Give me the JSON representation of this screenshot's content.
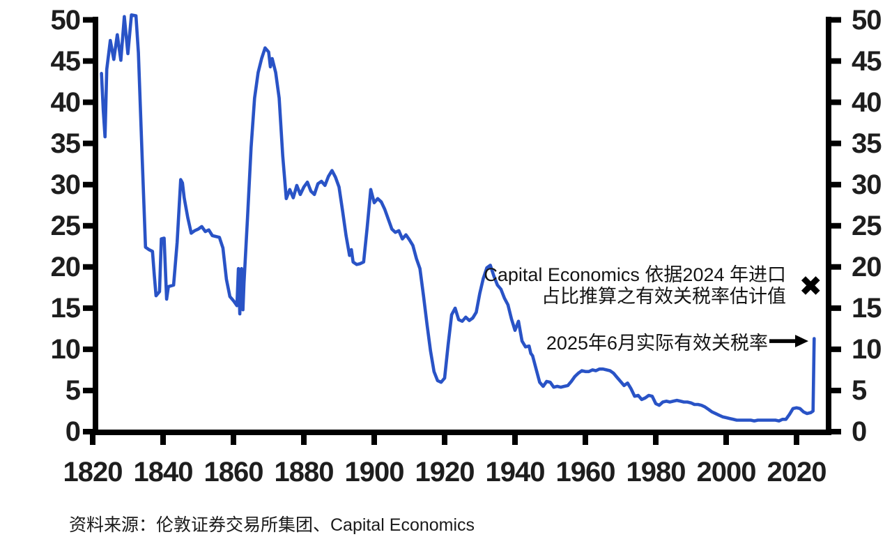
{
  "chart_data": {
    "type": "line",
    "title": "",
    "xlabel": "",
    "ylabel": "",
    "grid": false,
    "legend": "none",
    "xlim": [
      1817,
      2028
    ],
    "ylim": [
      0,
      50
    ],
    "x_ticks": [
      1820,
      1840,
      1860,
      1880,
      1900,
      1920,
      1940,
      1960,
      1980,
      2000,
      2020
    ],
    "y_ticks": [
      0,
      5,
      10,
      15,
      20,
      25,
      30,
      35,
      40,
      45,
      50
    ],
    "line_color": "#2953c6",
    "axis_color": "#000000",
    "points": [
      [
        1822.5,
        43.5
      ],
      [
        1823,
        39
      ],
      [
        1823.5,
        35.8
      ],
      [
        1824,
        44
      ],
      [
        1825,
        47.5
      ],
      [
        1826,
        45.2
      ],
      [
        1827,
        48.2
      ],
      [
        1828,
        45.1
      ],
      [
        1829,
        50.4
      ],
      [
        1830,
        45.9
      ],
      [
        1831,
        50.6
      ],
      [
        1832.3,
        50.5
      ],
      [
        1833,
        46
      ],
      [
        1834,
        34
      ],
      [
        1835,
        22.4
      ],
      [
        1836,
        22.1
      ],
      [
        1837,
        21.9
      ],
      [
        1837.5,
        19.0
      ],
      [
        1838,
        16.5
      ],
      [
        1839,
        17.0
      ],
      [
        1839.5,
        23.4
      ],
      [
        1840.3,
        23.5
      ],
      [
        1841,
        16.1
      ],
      [
        1841.5,
        17.6
      ],
      [
        1843,
        17.8
      ],
      [
        1844,
        23
      ],
      [
        1845,
        30.6
      ],
      [
        1845.5,
        30.2
      ],
      [
        1846,
        28.4
      ],
      [
        1847,
        26
      ],
      [
        1848,
        24.1
      ],
      [
        1849,
        24.4
      ],
      [
        1850,
        24.6
      ],
      [
        1851,
        24.9
      ],
      [
        1852,
        24.3
      ],
      [
        1853,
        24.5
      ],
      [
        1854,
        23.8
      ],
      [
        1855,
        23.7
      ],
      [
        1856,
        23.6
      ],
      [
        1857,
        22.3
      ],
      [
        1858,
        18.5
      ],
      [
        1859,
        16.4
      ],
      [
        1860,
        15.9
      ],
      [
        1861,
        15.3
      ],
      [
        1861.4,
        19.8
      ],
      [
        1861.8,
        14.3
      ],
      [
        1862.3,
        19.8
      ],
      [
        1862.7,
        14.8
      ],
      [
        1863,
        18
      ],
      [
        1864,
        26
      ],
      [
        1865,
        34.5
      ],
      [
        1866,
        40.5
      ],
      [
        1867,
        43.6
      ],
      [
        1868,
        45.3
      ],
      [
        1869,
        46.6
      ],
      [
        1870,
        46.1
      ],
      [
        1870.5,
        44.3
      ],
      [
        1871,
        45.3
      ],
      [
        1872,
        43.6
      ],
      [
        1873,
        40.5
      ],
      [
        1874,
        33.5
      ],
      [
        1875,
        28.3
      ],
      [
        1876,
        29.4
      ],
      [
        1877,
        28.4
      ],
      [
        1878,
        29.9
      ],
      [
        1879,
        28.8
      ],
      [
        1880,
        29.7
      ],
      [
        1881,
        30.3
      ],
      [
        1882,
        29.2
      ],
      [
        1883,
        28.8
      ],
      [
        1884,
        30.1
      ],
      [
        1885,
        30.4
      ],
      [
        1886,
        29.9
      ],
      [
        1887,
        31.0
      ],
      [
        1888,
        31.7
      ],
      [
        1889,
        30.9
      ],
      [
        1890,
        29.7
      ],
      [
        1891,
        26.8
      ],
      [
        1892,
        23.8
      ],
      [
        1893,
        21.4
      ],
      [
        1893.5,
        22.1
      ],
      [
        1894,
        20.6
      ],
      [
        1895,
        20.3
      ],
      [
        1896,
        20.4
      ],
      [
        1897,
        20.6
      ],
      [
        1898,
        24.8
      ],
      [
        1899,
        29.4
      ],
      [
        1900,
        27.8
      ],
      [
        1901,
        28.3
      ],
      [
        1902,
        27.9
      ],
      [
        1903,
        27.0
      ],
      [
        1904,
        25.8
      ],
      [
        1905,
        24.6
      ],
      [
        1906,
        24.2
      ],
      [
        1907,
        24.4
      ],
      [
        1908,
        23.4
      ],
      [
        1909,
        23.9
      ],
      [
        1910,
        23.3
      ],
      [
        1911,
        22.6
      ],
      [
        1912,
        21.0
      ],
      [
        1913,
        19.8
      ],
      [
        1914,
        16.5
      ],
      [
        1915,
        13.0
      ],
      [
        1916,
        9.8
      ],
      [
        1917,
        7.3
      ],
      [
        1918,
        6.2
      ],
      [
        1919,
        6.0
      ],
      [
        1920,
        6.5
      ],
      [
        1921,
        10.5
      ],
      [
        1922,
        14.2
      ],
      [
        1923,
        15.0
      ],
      [
        1924,
        13.6
      ],
      [
        1925,
        13.4
      ],
      [
        1926,
        13.9
      ],
      [
        1927,
        13.5
      ],
      [
        1928,
        13.8
      ],
      [
        1929,
        14.5
      ],
      [
        1930,
        16.8
      ],
      [
        1931,
        18.6
      ],
      [
        1932,
        19.9
      ],
      [
        1933,
        20.2
      ],
      [
        1934,
        18.9
      ],
      [
        1935,
        17.8
      ],
      [
        1936,
        17.3
      ],
      [
        1937,
        16.2
      ],
      [
        1938,
        15.4
      ],
      [
        1939,
        13.7
      ],
      [
        1940,
        12.3
      ],
      [
        1941,
        13.4
      ],
      [
        1942,
        11.0
      ],
      [
        1943,
        10.3
      ],
      [
        1944,
        10.4
      ],
      [
        1944.5,
        9.5
      ],
      [
        1945,
        9.2
      ],
      [
        1946,
        7.6
      ],
      [
        1947,
        6.0
      ],
      [
        1948,
        5.5
      ],
      [
        1949,
        6.1
      ],
      [
        1950,
        6.0
      ],
      [
        1951,
        5.4
      ],
      [
        1952,
        5.5
      ],
      [
        1953,
        5.4
      ],
      [
        1954,
        5.5
      ],
      [
        1955,
        5.6
      ],
      [
        1956,
        6.1
      ],
      [
        1957,
        6.7
      ],
      [
        1958,
        7.1
      ],
      [
        1959,
        7.4
      ],
      [
        1960,
        7.3
      ],
      [
        1961,
        7.3
      ],
      [
        1962,
        7.5
      ],
      [
        1963,
        7.4
      ],
      [
        1964,
        7.6
      ],
      [
        1965,
        7.6
      ],
      [
        1966,
        7.5
      ],
      [
        1967,
        7.4
      ],
      [
        1968,
        7.1
      ],
      [
        1969,
        6.6
      ],
      [
        1970,
        6.1
      ],
      [
        1971,
        5.6
      ],
      [
        1972,
        5.9
      ],
      [
        1973,
        5.2
      ],
      [
        1974,
        4.3
      ],
      [
        1975,
        4.4
      ],
      [
        1976,
        3.9
      ],
      [
        1977,
        4.1
      ],
      [
        1978,
        4.4
      ],
      [
        1979,
        4.3
      ],
      [
        1980,
        3.4
      ],
      [
        1981,
        3.2
      ],
      [
        1982,
        3.6
      ],
      [
        1983,
        3.7
      ],
      [
        1984,
        3.6
      ],
      [
        1985,
        3.7
      ],
      [
        1986,
        3.8
      ],
      [
        1987,
        3.7
      ],
      [
        1988,
        3.6
      ],
      [
        1989,
        3.6
      ],
      [
        1990,
        3.5
      ],
      [
        1991,
        3.3
      ],
      [
        1992,
        3.3
      ],
      [
        1993,
        3.2
      ],
      [
        1994,
        3.0
      ],
      [
        1995,
        2.7
      ],
      [
        1996,
        2.4
      ],
      [
        1997,
        2.2
      ],
      [
        1998,
        2.0
      ],
      [
        1999,
        1.8
      ],
      [
        2000,
        1.7
      ],
      [
        2001,
        1.6
      ],
      [
        2002,
        1.5
      ],
      [
        2003,
        1.4
      ],
      [
        2004,
        1.4
      ],
      [
        2005,
        1.4
      ],
      [
        2006,
        1.4
      ],
      [
        2007,
        1.4
      ],
      [
        2008,
        1.3
      ],
      [
        2009,
        1.4
      ],
      [
        2010,
        1.4
      ],
      [
        2011,
        1.4
      ],
      [
        2012,
        1.4
      ],
      [
        2013,
        1.4
      ],
      [
        2014,
        1.4
      ],
      [
        2015,
        1.3
      ],
      [
        2016,
        1.5
      ],
      [
        2017,
        1.5
      ],
      [
        2018,
        2.1
      ],
      [
        2019,
        2.8
      ],
      [
        2020,
        2.9
      ],
      [
        2021,
        2.8
      ],
      [
        2022,
        2.4
      ],
      [
        2023,
        2.2
      ],
      [
        2024,
        2.3
      ],
      [
        2024.7,
        2.5
      ],
      [
        2025,
        11.3
      ]
    ],
    "annotations": [
      {
        "line1": "Capital Economics 依据2024 年进口",
        "line2": "占比推算之有效关税率估计值",
        "marker": "✖",
        "marker_year": 2024,
        "marker_value": 17.6
      },
      {
        "text": "2025年6月实际有效关税率",
        "arrow_year": 2025,
        "arrow_value": 11.3
      }
    ]
  },
  "source_note": "资料来源：伦敦证券交易所集团、Capital Economics"
}
